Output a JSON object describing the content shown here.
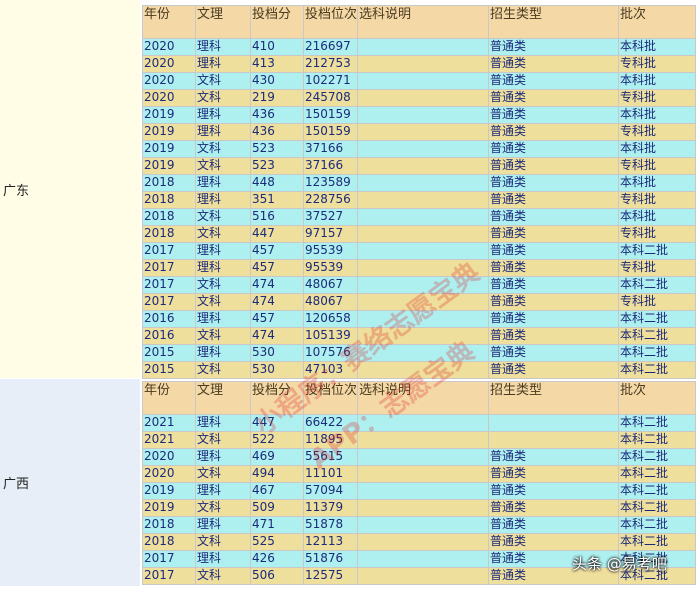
{
  "sections": [
    {
      "province": "广东",
      "header": [
        "年份",
        "文理",
        "投档分",
        "投档位次",
        "选科说明",
        "招生类型",
        "批次"
      ],
      "rows": [
        [
          2020,
          "理科",
          410,
          216697,
          null,
          "普通类",
          "本科批"
        ],
        [
          2020,
          "理科",
          413,
          212753,
          null,
          "普通类",
          "专科批"
        ],
        [
          2020,
          "文科",
          430,
          102271,
          null,
          "普通类",
          "本科批"
        ],
        [
          2020,
          "文科",
          219,
          245708,
          null,
          "普通类",
          "专科批"
        ],
        [
          2019,
          "理科",
          436,
          150159,
          null,
          "普通类",
          "本科批"
        ],
        [
          2019,
          "理科",
          436,
          150159,
          null,
          "普通类",
          "专科批"
        ],
        [
          2019,
          "文科",
          523,
          37166,
          null,
          "普通类",
          "本科批"
        ],
        [
          2019,
          "文科",
          523,
          37166,
          null,
          "普通类",
          "专科批"
        ],
        [
          2018,
          "理科",
          448,
          123589,
          null,
          "普通类",
          "本科批"
        ],
        [
          2018,
          "理科",
          351,
          228756,
          null,
          "普通类",
          "专科批"
        ],
        [
          2018,
          "文科",
          516,
          37527,
          null,
          "普通类",
          "本科批"
        ],
        [
          2018,
          "文科",
          447,
          97157,
          null,
          "普通类",
          "专科批"
        ],
        [
          2017,
          "理科",
          457,
          95539,
          null,
          "普通类",
          "本科二批"
        ],
        [
          2017,
          "理科",
          457,
          95539,
          null,
          "普通类",
          "专科批"
        ],
        [
          2017,
          "文科",
          474,
          48067,
          null,
          "普通类",
          "本科二批"
        ],
        [
          2017,
          "文科",
          474,
          48067,
          null,
          "普通类",
          "专科批"
        ],
        [
          2016,
          "理科",
          457,
          120658,
          null,
          "普通类",
          "本科二批"
        ],
        [
          2016,
          "文科",
          474,
          105139,
          null,
          "普通类",
          "本科二批"
        ],
        [
          2015,
          "理科",
          530,
          107576,
          null,
          "普通类",
          "本科二批"
        ],
        [
          2015,
          "文科",
          530,
          47103,
          null,
          "普通类",
          "本科二批"
        ]
      ]
    },
    {
      "province": "广西",
      "header": [
        "年份",
        "文理",
        "投档分",
        "投档位次",
        "选科说明",
        "招生类型",
        "批次"
      ],
      "rows": [
        [
          2021,
          "理科",
          447,
          66422,
          null,
          null,
          "本科二批"
        ],
        [
          2021,
          "文科",
          522,
          11895,
          null,
          null,
          "本科二批"
        ],
        [
          2020,
          "理科",
          469,
          55615,
          null,
          "普通类",
          "本科二批"
        ],
        [
          2020,
          "文科",
          494,
          11101,
          null,
          "普通类",
          "本科二批"
        ],
        [
          2019,
          "理科",
          467,
          57094,
          null,
          "普通类",
          "本科二批"
        ],
        [
          2019,
          "文科",
          509,
          11379,
          null,
          "普通类",
          "本科二批"
        ],
        [
          2018,
          "理科",
          471,
          51878,
          null,
          "普通类",
          "本科二批"
        ],
        [
          2018,
          "文科",
          525,
          12113,
          null,
          "普通类",
          "本科二批"
        ],
        [
          2017,
          "理科",
          426,
          51876,
          null,
          "普通类",
          "本科二批"
        ],
        [
          2017,
          "文科",
          506,
          12575,
          null,
          "普通类",
          "本科二批"
        ]
      ]
    }
  ],
  "watermarks": [
    "小程序：赛络志愿宝典",
    "APP：志愿宝典"
  ],
  "footer": "头条 @易考吧"
}
